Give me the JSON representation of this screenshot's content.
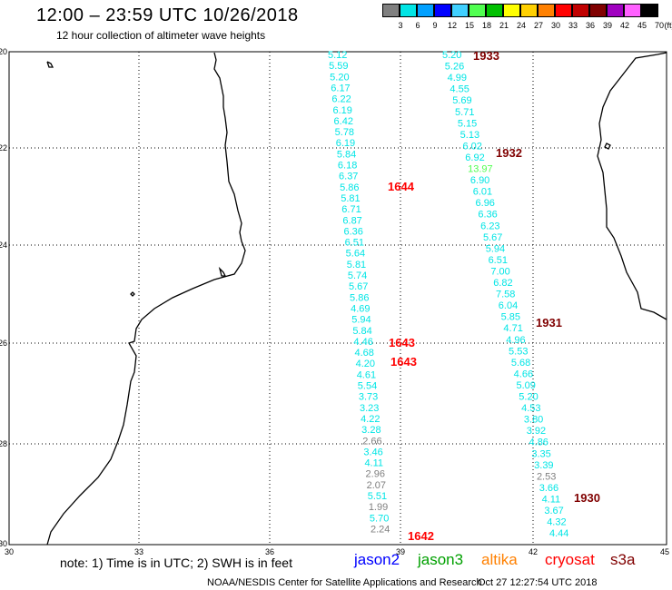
{
  "header": {
    "title": "12:00 – 23:59 UTC 10/26/2018",
    "subtitle": "12 hour collection of altimeter wave heights"
  },
  "scale": {
    "unit": "(ft)",
    "colors": [
      "#808080",
      "#00e5e5",
      "#00a0ff",
      "#0000ff",
      "#40d0ff",
      "#50ff50",
      "#00c000",
      "#ffff00",
      "#ffd000",
      "#ff8000",
      "#ff0000",
      "#c00000",
      "#800000",
      "#a000c0",
      "#ff60ff",
      "#000000"
    ],
    "labels": [
      "3",
      "6",
      "9",
      "12",
      "15",
      "18",
      "21",
      "24",
      "27",
      "30",
      "33",
      "36",
      "39",
      "42",
      "45",
      "70"
    ]
  },
  "axes": {
    "lat_labels": [
      "-20",
      "-22",
      "-24",
      "-26",
      "-28",
      "-30"
    ],
    "lon_labels": [
      "30",
      "33",
      "36",
      "39",
      "42",
      "45"
    ]
  },
  "tracks": [
    {
      "name": "1644 / 1643 / 1642",
      "values": [
        [
          "5.12",
          "#00e5e5"
        ],
        [
          "5.59",
          "#00e5e5"
        ],
        [
          "5.20",
          "#00e5e5"
        ],
        [
          "6.17",
          "#00e5e5"
        ],
        [
          "6.22",
          "#00e5e5"
        ],
        [
          "6.19",
          "#00e5e5"
        ],
        [
          "6.42",
          "#00e5e5"
        ],
        [
          "5.78",
          "#00e5e5"
        ],
        [
          "6.19",
          "#00e5e5"
        ],
        [
          "5.84",
          "#00e5e5"
        ],
        [
          "6.18",
          "#00e5e5"
        ],
        [
          "6.37",
          "#00e5e5"
        ],
        [
          "5.86",
          "#00e5e5"
        ],
        [
          "5.81",
          "#00e5e5"
        ],
        [
          "6.71",
          "#00e5e5"
        ],
        [
          "6.87",
          "#00e5e5"
        ],
        [
          "6.36",
          "#00e5e5"
        ],
        [
          "6.51",
          "#00e5e5"
        ],
        [
          "5.64",
          "#00e5e5"
        ],
        [
          "5.81",
          "#00e5e5"
        ],
        [
          "5.74",
          "#00e5e5"
        ],
        [
          "5.67",
          "#00e5e5"
        ],
        [
          "5.86",
          "#00e5e5"
        ],
        [
          "4.69",
          "#00e5e5"
        ],
        [
          "5.94",
          "#00e5e5"
        ],
        [
          "5.84",
          "#00e5e5"
        ],
        [
          "4.46",
          "#00e5e5"
        ],
        [
          "4.68",
          "#00e5e5"
        ],
        [
          "4.20",
          "#00e5e5"
        ],
        [
          "4.61",
          "#00e5e5"
        ],
        [
          "5.54",
          "#00e5e5"
        ],
        [
          "3.73",
          "#00e5e5"
        ],
        [
          "3.23",
          "#00e5e5"
        ],
        [
          "4.22",
          "#00e5e5"
        ],
        [
          "3.28",
          "#00e5e5"
        ],
        [
          "2.66",
          "#808080"
        ],
        [
          "3.46",
          "#00e5e5"
        ],
        [
          "4.11",
          "#00e5e5"
        ],
        [
          "2.96",
          "#808080"
        ],
        [
          "2.07",
          "#808080"
        ],
        [
          "5.51",
          "#00e5e5"
        ],
        [
          "1.99",
          "#808080"
        ],
        [
          "5.70",
          "#00e5e5"
        ],
        [
          "2.24",
          "#808080"
        ]
      ]
    },
    {
      "name": "1933 / 1932 / 1931 / 1930",
      "values": [
        [
          "5.20",
          "#00e5e5"
        ],
        [
          "5.26",
          "#00e5e5"
        ],
        [
          "4.99",
          "#00e5e5"
        ],
        [
          "4.55",
          "#00e5e5"
        ],
        [
          "5.69",
          "#00e5e5"
        ],
        [
          "5.71",
          "#00e5e5"
        ],
        [
          "5.15",
          "#00e5e5"
        ],
        [
          "5.13",
          "#00e5e5"
        ],
        [
          "6.02",
          "#00e5e5"
        ],
        [
          "6.92",
          "#00e5e5"
        ],
        [
          "13.97",
          "#50ff50"
        ],
        [
          "6.90",
          "#00e5e5"
        ],
        [
          "6.01",
          "#00e5e5"
        ],
        [
          "6.96",
          "#00e5e5"
        ],
        [
          "6.36",
          "#00e5e5"
        ],
        [
          "6.23",
          "#00e5e5"
        ],
        [
          "5.67",
          "#00e5e5"
        ],
        [
          "5.94",
          "#00e5e5"
        ],
        [
          "6.51",
          "#00e5e5"
        ],
        [
          "7.00",
          "#00e5e5"
        ],
        [
          "6.82",
          "#00e5e5"
        ],
        [
          "7.58",
          "#00e5e5"
        ],
        [
          "6.04",
          "#00e5e5"
        ],
        [
          "5.85",
          "#00e5e5"
        ],
        [
          "4.71",
          "#00e5e5"
        ],
        [
          "4.96",
          "#00e5e5"
        ],
        [
          "5.53",
          "#00e5e5"
        ],
        [
          "5.68",
          "#00e5e5"
        ],
        [
          "4.66",
          "#00e5e5"
        ],
        [
          "5.09",
          "#00e5e5"
        ],
        [
          "5.20",
          "#00e5e5"
        ],
        [
          "4.53",
          "#00e5e5"
        ],
        [
          "3.80",
          "#00e5e5"
        ],
        [
          "3.92",
          "#00e5e5"
        ],
        [
          "4.86",
          "#00e5e5"
        ],
        [
          "3.35",
          "#00e5e5"
        ],
        [
          "3.39",
          "#00e5e5"
        ],
        [
          "2.53",
          "#808080"
        ],
        [
          "3.66",
          "#00e5e5"
        ],
        [
          "4.11",
          "#00e5e5"
        ],
        [
          "3.67",
          "#00e5e5"
        ],
        [
          "4.32",
          "#00e5e5"
        ],
        [
          "4.44",
          "#00e5e5"
        ]
      ]
    }
  ],
  "time_tags": [
    {
      "text": "1644",
      "color": "#ff0000"
    },
    {
      "text": "1643",
      "color": "#ff0000"
    },
    {
      "text": "1643",
      "color": "#ff0000"
    },
    {
      "text": "1642",
      "color": "#ff0000"
    },
    {
      "text": "1933",
      "color": "#800000"
    },
    {
      "text": "1932",
      "color": "#800000"
    },
    {
      "text": "1931",
      "color": "#800000"
    },
    {
      "text": "1930",
      "color": "#800000"
    }
  ],
  "footer": {
    "note": "note:  1) Time is in UTC;  2) SWH is in feet",
    "legend": [
      {
        "label": "jason2",
        "color": "#0000ff"
      },
      {
        "label": "jason3",
        "color": "#00a000"
      },
      {
        "label": "altika",
        "color": "#ff8000"
      },
      {
        "label": "cryosat",
        "color": "#ff0000"
      },
      {
        "label": "s3a",
        "color": "#800000"
      }
    ],
    "credit": "NOAA/NESDIS Center for Satellite Applications and Research",
    "timestamp": "Oct 27 12:27:54 UTC 2018"
  }
}
